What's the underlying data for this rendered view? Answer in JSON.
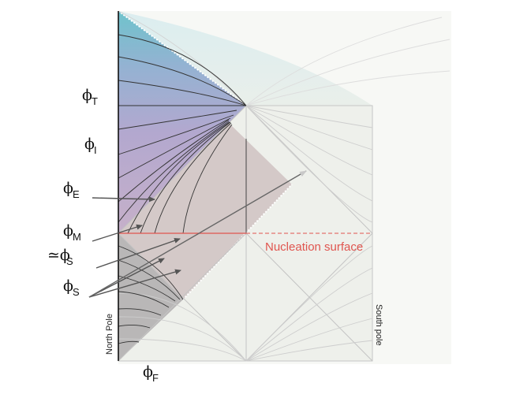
{
  "labels": {
    "phi_T": {
      "symbol": "ϕ",
      "sub": "T"
    },
    "phi_I": {
      "symbol": "ϕ",
      "sub": "I"
    },
    "phi_E": {
      "symbol": "ϕ",
      "sub": "E"
    },
    "phi_M": {
      "symbol": "ϕ",
      "sub": "M"
    },
    "approx_phi_S": {
      "symbol": "≃ϕ",
      "sub": "S"
    },
    "phi_S": {
      "symbol": "ϕ",
      "sub": "S"
    },
    "phi_F": {
      "symbol": "ϕ",
      "sub": "F"
    }
  },
  "nucleation_surface": "Nucleation surface",
  "north_pole": "North Pole",
  "south_pole": "South pole",
  "colors": {
    "nucleation": "#e0554f",
    "background_square": "#eef0eb",
    "shaded_diamond": "#c9bcbc",
    "lower_grey": "#b9b9b9",
    "line_grey": "#bdbdbd",
    "arrow": "#555555"
  }
}
